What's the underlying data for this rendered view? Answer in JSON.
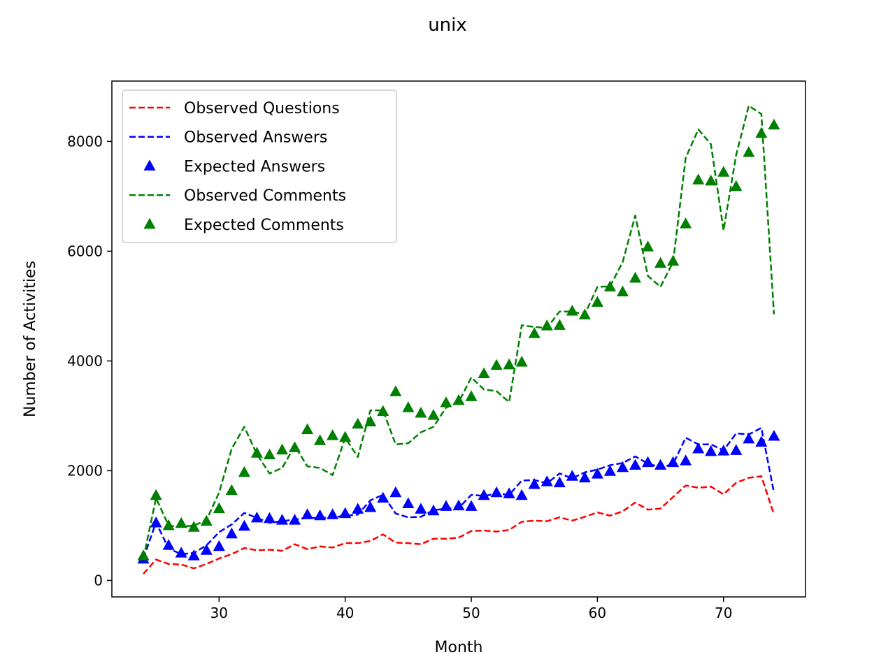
{
  "chart_data": {
    "type": "line",
    "title": "unix",
    "xlabel": "Month",
    "ylabel": "Number of Activities",
    "xlim": [
      21.5,
      76.5
    ],
    "ylim": [
      -300,
      9100
    ],
    "xticks": [
      30,
      40,
      50,
      60,
      70
    ],
    "yticks": [
      0,
      2000,
      4000,
      6000,
      8000
    ],
    "grid": false,
    "legend_position": "upper-left",
    "x": [
      24,
      25,
      26,
      27,
      28,
      29,
      30,
      31,
      32,
      33,
      34,
      35,
      36,
      37,
      38,
      39,
      40,
      41,
      42,
      43,
      44,
      45,
      46,
      47,
      48,
      49,
      50,
      51,
      52,
      53,
      54,
      55,
      56,
      57,
      58,
      59,
      60,
      61,
      62,
      63,
      64,
      65,
      66,
      67,
      68,
      69,
      70,
      71,
      72,
      73,
      74
    ],
    "series": [
      {
        "name": "Observed Questions",
        "style": "dashed-line",
        "color": "#ff0000",
        "values": [
          120,
          380,
          300,
          290,
          220,
          300,
          400,
          480,
          590,
          550,
          560,
          540,
          660,
          570,
          620,
          600,
          680,
          680,
          720,
          840,
          690,
          680,
          660,
          760,
          760,
          780,
          900,
          910,
          890,
          920,
          1070,
          1090,
          1080,
          1150,
          1090,
          1160,
          1240,
          1180,
          1260,
          1420,
          1290,
          1310,
          1520,
          1730,
          1690,
          1710,
          1570,
          1780,
          1870,
          1900,
          1200
        ]
      },
      {
        "name": "Observed Answers",
        "style": "dashed-line",
        "color": "#0000ff",
        "values": [
          400,
          1060,
          580,
          480,
          500,
          640,
          880,
          1020,
          1230,
          1140,
          1050,
          1080,
          1110,
          1140,
          1140,
          1150,
          1180,
          1200,
          1460,
          1560,
          1220,
          1150,
          1160,
          1280,
          1310,
          1320,
          1560,
          1540,
          1580,
          1560,
          1820,
          1830,
          1770,
          1950,
          1860,
          1970,
          2020,
          2100,
          2140,
          2260,
          2130,
          2060,
          2120,
          2600,
          2480,
          2480,
          2370,
          2680,
          2660,
          2780,
          1600
        ]
      },
      {
        "name": "Expected Answers",
        "style": "triangle-markers",
        "color": "#0000ff",
        "values": [
          390,
          1050,
          640,
          500,
          450,
          550,
          620,
          850,
          990,
          1140,
          1130,
          1100,
          1100,
          1200,
          1180,
          1200,
          1220,
          1300,
          1330,
          1500,
          1600,
          1400,
          1300,
          1270,
          1350,
          1360,
          1350,
          1550,
          1600,
          1580,
          1550,
          1750,
          1800,
          1780,
          1900,
          1870,
          1940,
          1990,
          2060,
          2100,
          2150,
          2100,
          2150,
          2180,
          2400,
          2350,
          2360,
          2370,
          2580,
          2520,
          2630
        ]
      },
      {
        "name": "Observed Comments",
        "style": "dashed-line",
        "color": "#008000",
        "values": [
          400,
          1500,
          1000,
          980,
          1000,
          1100,
          1600,
          2400,
          2800,
          2300,
          1950,
          2050,
          2450,
          2080,
          2050,
          1920,
          2600,
          2250,
          3100,
          3100,
          2480,
          2500,
          2700,
          2800,
          3150,
          3250,
          3700,
          3480,
          3450,
          3250,
          4650,
          4620,
          4600,
          4900,
          4900,
          4850,
          5350,
          5360,
          5800,
          6650,
          5550,
          5350,
          5800,
          7700,
          8220,
          7950,
          6380,
          7750,
          8650,
          8500,
          4850
        ]
      },
      {
        "name": "Expected Comments",
        "style": "triangle-markers",
        "color": "#008000",
        "values": [
          450,
          1550,
          1000,
          1040,
          970,
          1080,
          1310,
          1640,
          1970,
          2320,
          2290,
          2380,
          2420,
          2750,
          2550,
          2640,
          2610,
          2850,
          2890,
          3080,
          3440,
          3150,
          3050,
          3010,
          3240,
          3280,
          3350,
          3770,
          3920,
          3930,
          3980,
          4500,
          4640,
          4650,
          4910,
          4840,
          5070,
          5350,
          5260,
          5510,
          6080,
          5780,
          5820,
          6500,
          7300,
          7280,
          7440,
          7180,
          7800,
          8150,
          8300
        ]
      }
    ]
  }
}
